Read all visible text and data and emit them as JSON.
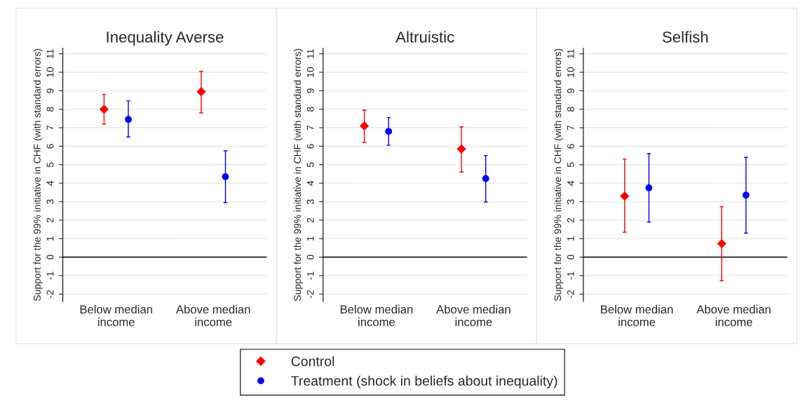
{
  "chart_data": [
    {
      "type": "scatter",
      "title": "Inequality Averse",
      "ylabel": "Support for the 99% initiative in CHF (with standard errors)",
      "categories": [
        "Below median\nincome",
        "Above median\nincome"
      ],
      "ylim": [
        -2.4,
        11.3
      ],
      "yticks": [
        -2,
        -1,
        0,
        1,
        2,
        3,
        4,
        5,
        6,
        7,
        8,
        9,
        10,
        11
      ],
      "grid": "y",
      "legend": "bottom",
      "ref_lines": [
        {
          "axis": "y",
          "value": 0,
          "color": "#000000"
        }
      ],
      "series": [
        {
          "name": "Control",
          "color": "#ff0000",
          "marker": "diamond",
          "values": [
            8.0,
            8.95
          ],
          "errors": [
            [
              7.2,
              8.8
            ],
            [
              7.8,
              10.05
            ]
          ]
        },
        {
          "name": "Treatment (shock in beliefs about inequality)",
          "color": "#0000ff",
          "marker": "circle",
          "values": [
            7.45,
            4.35
          ],
          "errors": [
            [
              6.5,
              8.45
            ],
            [
              2.95,
              5.75
            ]
          ]
        }
      ]
    },
    {
      "type": "scatter",
      "title": "Altruistic",
      "ylabel": "Support for the 99% initiative in CHF (with standard errors)",
      "categories": [
        "Below median\nincome",
        "Above median\nincome"
      ],
      "ylim": [
        -2.4,
        11.3
      ],
      "yticks": [
        -2,
        -1,
        0,
        1,
        2,
        3,
        4,
        5,
        6,
        7,
        8,
        9,
        10,
        11
      ],
      "grid": "y",
      "ref_lines": [
        {
          "axis": "y",
          "value": 0,
          "color": "#000000"
        }
      ],
      "series": [
        {
          "name": "Control",
          "color": "#ff0000",
          "marker": "diamond",
          "values": [
            7.1,
            5.85
          ],
          "errors": [
            [
              6.2,
              7.95
            ],
            [
              4.6,
              7.05
            ]
          ]
        },
        {
          "name": "Treatment (shock in beliefs about inequality)",
          "color": "#0000ff",
          "marker": "circle",
          "values": [
            6.8,
            4.25
          ],
          "errors": [
            [
              6.05,
              7.55
            ],
            [
              2.98,
              5.5
            ]
          ]
        }
      ]
    },
    {
      "type": "scatter",
      "title": "Selfish",
      "ylabel": "Support for the 99% initiative in CHF (with standard errors)",
      "categories": [
        "Below median\nincome",
        "Above median\nincome"
      ],
      "ylim": [
        -2.4,
        11.3
      ],
      "yticks": [
        -2,
        -1,
        0,
        1,
        2,
        3,
        4,
        5,
        6,
        7,
        8,
        9,
        10,
        11
      ],
      "grid": "y",
      "ref_lines": [
        {
          "axis": "y",
          "value": 0,
          "color": "#000000"
        }
      ],
      "series": [
        {
          "name": "Control",
          "color": "#ff0000",
          "marker": "diamond",
          "values": [
            3.3,
            0.73
          ],
          "errors": [
            [
              1.35,
              5.3
            ],
            [
              -1.27,
              2.73
            ]
          ]
        },
        {
          "name": "Treatment (shock in beliefs about inequality)",
          "color": "#0000ff",
          "marker": "circle",
          "values": [
            3.75,
            3.35
          ],
          "errors": [
            [
              1.9,
              5.6
            ],
            [
              1.3,
              5.4
            ]
          ]
        }
      ]
    }
  ]
}
